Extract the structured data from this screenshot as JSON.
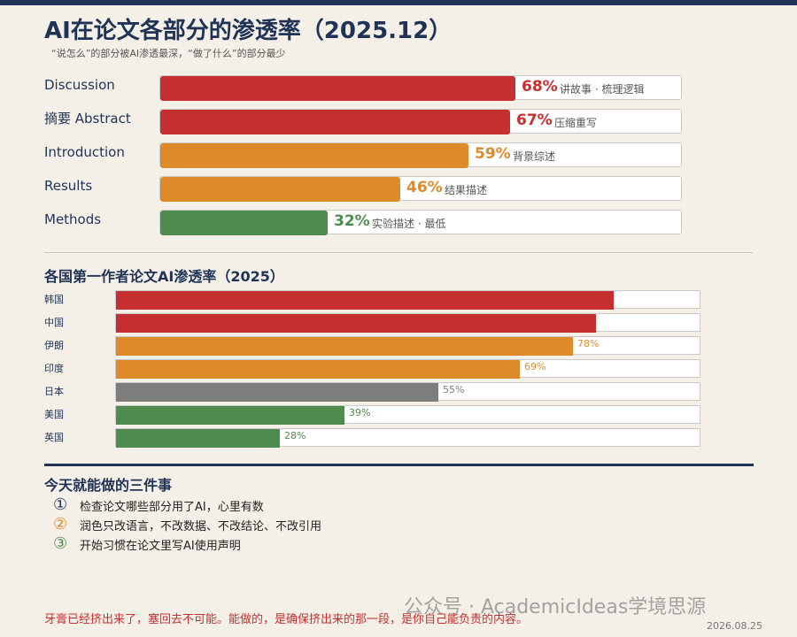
{
  "header": {
    "title": "AI在论文各部分的渗透率（2025.12）",
    "subtitle": "“说怎么”的部分被AI渗透最深，“做了什么”的部分最少"
  },
  "chart_data": [
    {
      "type": "bar",
      "orientation": "horizontal",
      "categories": [
        "Discussion",
        "摘要 Abstract",
        "Introduction",
        "Results",
        "Methods"
      ],
      "values": [
        68,
        67,
        59,
        46,
        32
      ],
      "value_labels": [
        "68%",
        "67%",
        "59%",
        "46%",
        "32%"
      ],
      "annotations": [
        "讲故事 · 梳理逻辑",
        "压缩重写",
        "背景综述",
        "结果描述",
        "实验描述 · 最低"
      ],
      "colors": [
        "#c62f2f",
        "#c62f2f",
        "#de8a2a",
        "#de8a2a",
        "#4f8a4f"
      ],
      "xlim": [
        0,
        100
      ],
      "title": ""
    },
    {
      "type": "bar",
      "orientation": "horizontal",
      "title": "各国第一作者论文AI渗透率（2025）",
      "categories": [
        "韩国",
        "中国",
        "伊朗",
        "印度",
        "日本",
        "美国",
        "英国"
      ],
      "values": [
        85,
        82,
        78,
        69,
        55,
        39,
        28
      ],
      "value_labels": [
        "85%",
        "82%",
        "78%",
        "69%",
        "55%",
        "39%",
        "28%"
      ],
      "colors": [
        "#c62f2f",
        "#c62f2f",
        "#de8a2a",
        "#de8a2a",
        "#7d7d7d",
        "#4f8a4f",
        "#4f8a4f"
      ],
      "xlim": [
        0,
        100
      ]
    }
  ],
  "actions": {
    "title": "今天就能做的三件事",
    "items": [
      {
        "num": "①",
        "text": "检查论文哪些部分用了AI，心里有数",
        "color": "#1f3357"
      },
      {
        "num": "②",
        "text": "润色只改语言，不改数据、不改结论、不改引用",
        "color": "#de8a2a"
      },
      {
        "num": "③",
        "text": "开始习惯在论文里写AI使用声明",
        "color": "#4f8a4f"
      }
    ]
  },
  "footer": {
    "watermark": "公众号 · AcademicIdeas学境思源",
    "quote": "牙膏已经挤出来了，塞回去不可能。能做的，是确保挤出来的那一段，是你自己能负责的内容。",
    "date": "2026.08.25"
  }
}
